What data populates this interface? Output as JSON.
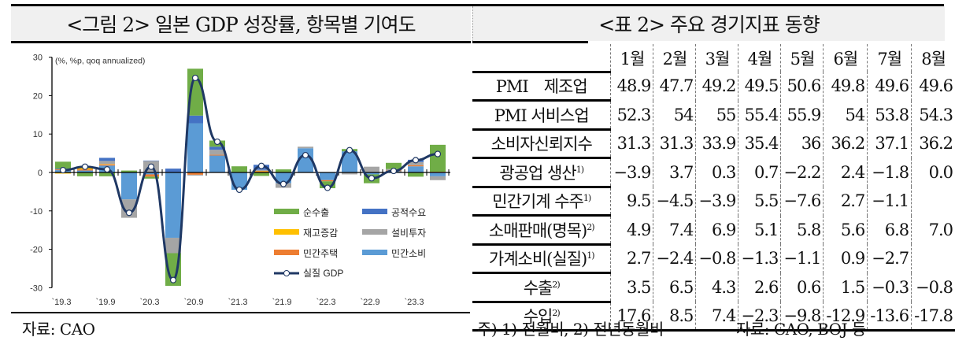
{
  "figure": {
    "title": "<그림 2> 일본 GDP 성장률, 항목별 기여도",
    "source": "자료: CAO"
  },
  "table": {
    "title": "<표 2> 주요 경기지표 동향",
    "columns": [
      "1월",
      "2월",
      "3월",
      "4월",
      "5월",
      "6월",
      "7월",
      "8월"
    ],
    "rows": [
      {
        "label": "PMI　제조업",
        "note": "",
        "values": [
          "48.9",
          "47.7",
          "49.2",
          "49.5",
          "50.6",
          "49.8",
          "49.6",
          "49.6"
        ]
      },
      {
        "label": "PMI 서비스업",
        "note": "",
        "values": [
          "52.3",
          "54",
          "55",
          "55.4",
          "55.9",
          "54",
          "53.8",
          "54.3"
        ]
      },
      {
        "label": "소비자신뢰지수",
        "note": "",
        "values": [
          "31.3",
          "31.3",
          "33.9",
          "35.4",
          "36",
          "36.2",
          "37.1",
          "36.2"
        ]
      },
      {
        "label": "광공업 생산",
        "note": "1)",
        "values": [
          "−3.9",
          "3.7",
          "0.3",
          "0.7",
          "−2.2",
          "2.4",
          "−1.8",
          "0.0"
        ]
      },
      {
        "label": "민간기계 수주",
        "note": "1)",
        "values": [
          "9.5",
          "−4.5",
          "−3.9",
          "5.5",
          "−7.6",
          "2.7",
          "−1.1",
          ""
        ]
      },
      {
        "label": "소매판매(명목)",
        "note": "2)",
        "values": [
          "4.9",
          "7.4",
          "6.9",
          "5.1",
          "5.8",
          "5.6",
          "6.8",
          "7.0"
        ]
      },
      {
        "label": "가계소비(실질)",
        "note": "1)",
        "values": [
          "2.7",
          "−2.4",
          "−0.8",
          "−1.3",
          "−1.1",
          "0.9",
          "−2.7",
          ""
        ]
      },
      {
        "label": "수출",
        "note": "2)",
        "values": [
          "3.5",
          "6.5",
          "4.3",
          "2.6",
          "0.6",
          "1.5",
          "−0.3",
          "−0.8"
        ]
      },
      {
        "label": "수입",
        "note": "2)",
        "values": [
          "17.6",
          "8.5",
          "7.4",
          "−2.3",
          "−9.8",
          "-12.9",
          "-13.6",
          "-17.8"
        ]
      }
    ],
    "footnote": "주) 1) 전월비, 2) 전년동월비",
    "source": "자료: CAO, BOJ 등"
  },
  "chart_data": {
    "type": "bar",
    "title": "일본 GDP 성장률, 항목별 기여도",
    "unit_label": "(%, %p, qoq annualized)",
    "ylim": [
      -30,
      30
    ],
    "yticks": [
      30,
      20,
      10,
      0,
      -10,
      -20,
      -30
    ],
    "xtick_labels": [
      "`19.3",
      "`19.9",
      "`20.3",
      "`20.9",
      "`21.3",
      "`21.9",
      "`22.3",
      "`22.9",
      "`23.3"
    ],
    "categories": [
      "19.3",
      "19.6",
      "19.9",
      "19.12",
      "20.3",
      "20.6",
      "20.9",
      "20.12",
      "21.3",
      "21.6",
      "21.9",
      "21.12",
      "22.3",
      "22.6",
      "22.9",
      "22.12",
      "23.3",
      "23.6"
    ],
    "legend": [
      "순수출",
      "공적수요",
      "재고증감",
      "설비투자",
      "민간주택",
      "민간소비",
      "실질 GDP"
    ],
    "colors": {
      "순수출": "#70ad47",
      "공적수요": "#4472c4",
      "재고증감": "#ffc000",
      "설비투자": "#a5a5a5",
      "민간주택": "#ed7d31",
      "민간소비": "#5b9bd5",
      "실질 GDP": "#1f3864"
    },
    "series": [
      {
        "name": "민간소비",
        "values": [
          0.6,
          0.5,
          1.8,
          -7.0,
          -0.5,
          -17.0,
          12.8,
          4.4,
          -4.5,
          0.0,
          -2.8,
          6.3,
          -2.0,
          5.5,
          -0.5,
          0.3,
          1.6,
          -1.0
        ]
      },
      {
        "name": "민간주택",
        "values": [
          0.2,
          0.3,
          0.3,
          0.0,
          -0.6,
          0.0,
          -0.6,
          0.2,
          0.0,
          0.3,
          0.0,
          0.0,
          -0.3,
          0.0,
          0.0,
          0.2,
          0.3,
          0.2
        ]
      },
      {
        "name": "재고증감",
        "values": [
          -0.3,
          0.5,
          0.1,
          0.0,
          0.0,
          0.0,
          0.0,
          0.0,
          0.0,
          0.1,
          0.0,
          0.0,
          0.0,
          0.0,
          0.0,
          0.0,
          0.0,
          0.0
        ]
      },
      {
        "name": "설비투자",
        "values": [
          0.0,
          0.0,
          0.8,
          -4.8,
          3.0,
          -4.0,
          -0.2,
          1.3,
          0.0,
          0.3,
          -1.2,
          0.4,
          0.0,
          -0.5,
          1.5,
          0.4,
          0.8,
          -1.0
        ]
      },
      {
        "name": "공적수요",
        "values": [
          0.2,
          0.0,
          0.8,
          0.0,
          0.1,
          1.0,
          2.0,
          0.8,
          0.0,
          1.3,
          0.0,
          0.0,
          0.0,
          0.0,
          0.0,
          0.0,
          0.6,
          0.0
        ]
      },
      {
        "name": "순수출",
        "values": [
          1.8,
          -1.0,
          -1.0,
          0.5,
          -0.5,
          -8.5,
          12.2,
          1.6,
          1.6,
          -0.9,
          0.8,
          0.0,
          -1.8,
          0.6,
          -2.3,
          1.6,
          -1.1,
          7.0
        ]
      }
    ],
    "line": {
      "name": "실질 GDP",
      "values": [
        0.6,
        1.5,
        0.8,
        -10.5,
        1.5,
        -28.0,
        24.6,
        8.0,
        -4.5,
        1.7,
        -3.0,
        4.5,
        -4.0,
        5.8,
        -1.5,
        0.4,
        3.2,
        4.8
      ]
    }
  }
}
